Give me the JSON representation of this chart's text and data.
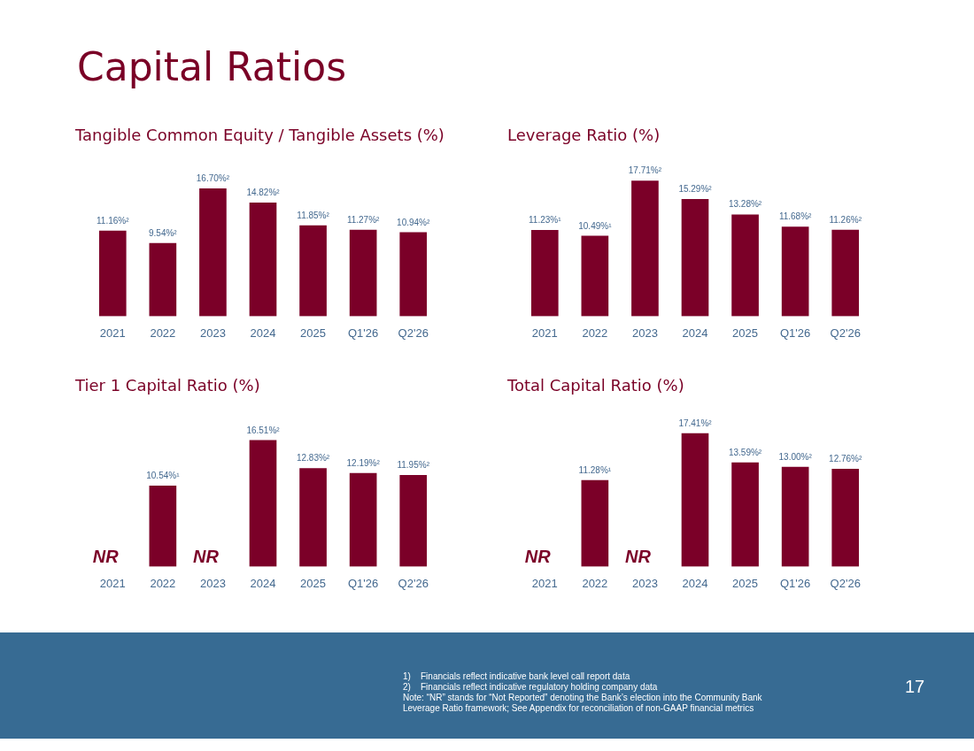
{
  "chart_data": [
    {
      "type": "bar",
      "title": "Tangible Common Equity / Tangible Assets (%)",
      "categories": [
        "2021",
        "2022",
        "2023",
        "2024",
        "2025",
        "Q1'26",
        "Q2'26"
      ],
      "color": "#7b0028",
      "values": [
        11.16,
        9.54,
        16.7,
        14.82,
        11.85,
        11.27,
        10.94
      ],
      "value_labels": [
        "11.16%²",
        "9.54%²",
        "16.70%²",
        "14.82%²",
        "11.85%²",
        "11.27%²",
        "10.94%²"
      ],
      "grid": false,
      "legend": false
    },
    {
      "type": "bar",
      "title": "Leverage Ratio (%)",
      "categories": [
        "2021",
        "2022",
        "2023",
        "2024",
        "2025",
        "Q1'26",
        "Q2'26"
      ],
      "color": "#7b0028",
      "values": [
        11.23,
        10.49,
        17.71,
        15.29,
        13.28,
        11.68,
        11.26
      ],
      "value_labels": [
        "11.23%¹",
        "10.49%¹",
        "17.71%²",
        "15.29%²",
        "13.28%²",
        "11.68%²",
        "11.26%²"
      ],
      "grid": false,
      "legend": false
    },
    {
      "type": "bar",
      "title": "Tier 1 Capital Ratio (%)",
      "categories": [
        "2021",
        "2022",
        "2023",
        "2024",
        "2025",
        "Q1'26",
        "Q2'26"
      ],
      "color": "#7b0028",
      "values": [
        null,
        10.54,
        null,
        16.51,
        12.83,
        12.19,
        11.95
      ],
      "value_labels": [
        "NR",
        "10.54%¹",
        "NR",
        "16.51%²",
        "12.83%²",
        "12.19%²",
        "11.95%²"
      ],
      "grid": false,
      "legend": false
    },
    {
      "type": "bar",
      "title": "Total Capital Ratio (%)",
      "categories": [
        "2021",
        "2022",
        "2023",
        "2024",
        "2025",
        "Q1'26",
        "Q2'26"
      ],
      "color": "#7b0028",
      "values": [
        null,
        11.28,
        null,
        17.41,
        13.59,
        13.0,
        12.76
      ],
      "value_labels": [
        "NR",
        "11.28%¹",
        "NR",
        "17.41%²",
        "13.59%²",
        "13.00%²",
        "12.76%²"
      ],
      "grid": false,
      "legend": false
    },
    {
      "type": "other",
      "title": "Capital Ratios",
      "annotations": [
        "1)    Financials reflect indicative bank level call report data",
        "2)    Financials reflect indicative regulatory holding company data",
        "Note: “NR” stands for “Not Reported” denoting the Bank’s election into the Community Bank Leverage Ratio framework; See Appendix for reconciliation of non-GAAP financial metrics",
        "17"
      ]
    }
  ]
}
